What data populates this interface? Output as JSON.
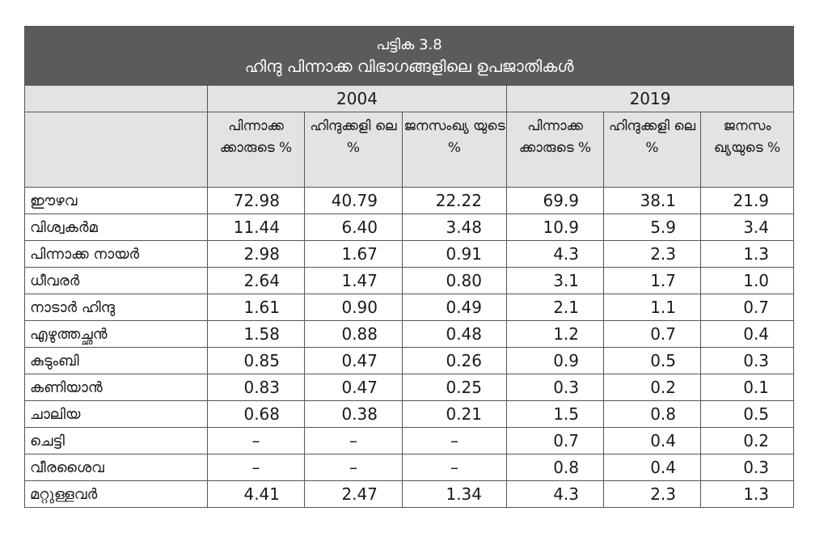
{
  "table": {
    "number": "പട്ടിക 3.8",
    "title": "ഹിന്ദു പിന്നാക്ക വിഭാഗങ്ങളിലെ ഉപജാതികൾ",
    "years": [
      "2004",
      "2019"
    ],
    "subheaders": [
      "പിന്നാക്ക ക്കാരുടെ %",
      "ഹിന്ദുക്കളി ലെ %",
      "ജനസംഖ്യ യുടെ %",
      "പിന്നാക്ക ക്കാരുടെ %",
      "ഹിന്ദുക്കളി ലെ %",
      "ജനസം ഖ്യയുടെ %"
    ],
    "rows": [
      [
        "ഈഴവ",
        "72.98",
        "40.79",
        "22.22",
        "69.9",
        "38.1",
        "21.9"
      ],
      [
        "വിശ്വകർമ",
        "11.44",
        "6.40",
        "3.48",
        "10.9",
        "5.9",
        "3.4"
      ],
      [
        "പിന്നാക്ക നായർ",
        "2.98",
        "1.67",
        "0.91",
        "4.3",
        "2.3",
        "1.3"
      ],
      [
        "ധീവരർ",
        "2.64",
        "1.47",
        "0.80",
        "3.1",
        "1.7",
        "1.0"
      ],
      [
        "നാടാർ ഹിന്ദു",
        "1.61",
        "0.90",
        "0.49",
        "2.1",
        "1.1",
        "0.7"
      ],
      [
        "എഴുത്തച്ഛൻ",
        "1.58",
        "0.88",
        "0.48",
        "1.2",
        "0.7",
        "0.4"
      ],
      [
        "കുടുംബി",
        "0.85",
        "0.47",
        "0.26",
        "0.9",
        "0.5",
        "0.3"
      ],
      [
        "കണിയാൻ",
        "0.83",
        "0.47",
        "0.25",
        "0.3",
        "0.2",
        "0.1"
      ],
      [
        "ചാലിയ",
        "0.68",
        "0.38",
        "0.21",
        "1.5",
        "0.8",
        "0.5"
      ],
      [
        "ചെട്ടി",
        "–",
        "–",
        "–",
        "0.7",
        "0.4",
        "0.2"
      ],
      [
        "വീരശൈവ",
        "–",
        "–",
        "–",
        "0.8",
        "0.4",
        "0.3"
      ],
      [
        "മറ്റുള്ളവർ",
        "4.41",
        "2.47",
        "1.34",
        "4.3",
        "2.3",
        "1.3"
      ]
    ]
  }
}
